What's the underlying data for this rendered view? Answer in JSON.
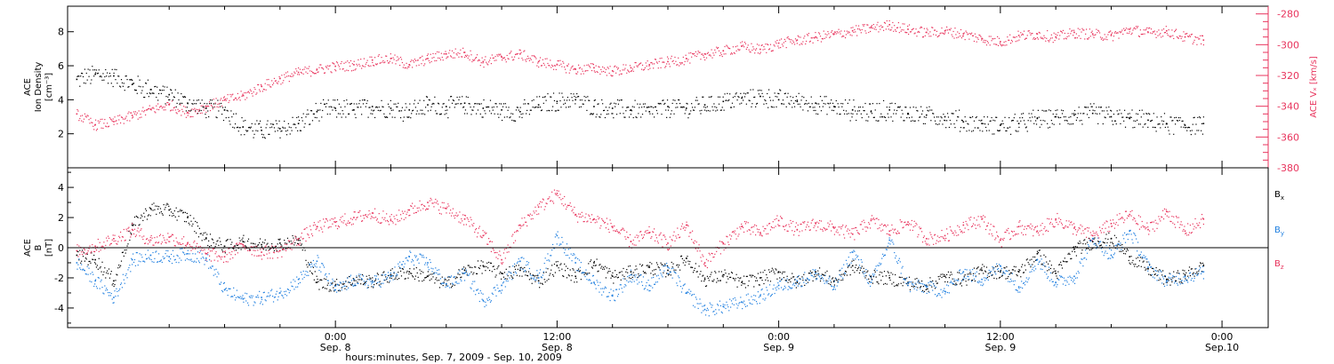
{
  "colors": {
    "black": "#000000",
    "pink": "#e8335c",
    "blue": "#1f7fe0",
    "axis": "#000000"
  },
  "x_axis": {
    "title": "hours:minutes, Sep.  7, 2009 - Sep. 10, 2009",
    "time_range_hours": [
      -14.5,
      50.5
    ],
    "ticks": [
      {
        "hours": 0,
        "label": "0:00",
        "date": "Sep. 8"
      },
      {
        "hours": 12,
        "label": "12:00",
        "date": "Sep. 8"
      },
      {
        "hours": 24,
        "label": "0:00",
        "date": "Sep. 9"
      },
      {
        "hours": 36,
        "label": "12:00",
        "date": "Sep. 9"
      },
      {
        "hours": 48,
        "label": "0:00",
        "date": "Sep.10"
      }
    ]
  },
  "chart_data": [
    {
      "type": "scatter",
      "panel": "top",
      "title": "",
      "left_axis": {
        "label_lines": [
          "ACE",
          "Ion Density",
          "[cm⁻³]"
        ],
        "ylim": [
          0,
          9.5
        ],
        "ticks": [
          2,
          4,
          6,
          8
        ]
      },
      "right_axis": {
        "label": "ACE Vₓ [km/s]",
        "ylim": [
          -380,
          -275
        ],
        "ticks": [
          -380,
          -360,
          -340,
          -320,
          -300,
          -280
        ]
      },
      "series": [
        {
          "name": "",
          "axis": "left",
          "color": "#000000",
          "x_hours": [
            -14,
            -13,
            -12,
            -11,
            -10,
            -9,
            -8,
            -7,
            -6,
            -5,
            -4,
            -3,
            -2,
            -1,
            0,
            1,
            2,
            3,
            4,
            5,
            6,
            7,
            8,
            9,
            10,
            11,
            12,
            13,
            14,
            15,
            16,
            17,
            18,
            19,
            20,
            21,
            22,
            23,
            24,
            25,
            26,
            27,
            28,
            29,
            30,
            31,
            32,
            33,
            34,
            35,
            36,
            37,
            38,
            39,
            40,
            41,
            42,
            43,
            44,
            45,
            46,
            47
          ],
          "values": [
            5.2,
            5.5,
            5.4,
            4.9,
            4.6,
            4.3,
            3.8,
            3.5,
            3.4,
            2.4,
            2.2,
            2.3,
            2.6,
            3.3,
            3.5,
            3.4,
            3.6,
            3.5,
            3.4,
            3.7,
            3.6,
            3.8,
            3.5,
            3.4,
            3.3,
            3.7,
            3.9,
            4.0,
            3.6,
            3.5,
            3.4,
            3.3,
            3.6,
            3.5,
            3.7,
            3.9,
            4.1,
            4.2,
            4.0,
            3.9,
            3.8,
            3.6,
            3.4,
            3.3,
            3.4,
            3.2,
            3.1,
            3.0,
            2.7,
            2.6,
            2.5,
            2.6,
            2.9,
            3.0,
            3.1,
            3.2,
            3.0,
            2.9,
            2.8,
            2.6,
            2.5,
            2.6
          ]
        },
        {
          "name": "",
          "axis": "right",
          "color": "#e8335c",
          "x_hours": [
            -14,
            -13,
            -12,
            -11,
            -10,
            -9,
            -8,
            -7,
            -6,
            -5,
            -4,
            -3,
            -2,
            -1,
            0,
            1,
            2,
            3,
            4,
            5,
            6,
            7,
            8,
            9,
            10,
            11,
            12,
            13,
            14,
            15,
            16,
            17,
            18,
            19,
            20,
            21,
            22,
            23,
            24,
            25,
            26,
            27,
            28,
            29,
            30,
            31,
            32,
            33,
            34,
            35,
            36,
            37,
            38,
            39,
            40,
            41,
            42,
            43,
            44,
            45,
            46,
            47
          ],
          "values": [
            -345,
            -352,
            -350,
            -346,
            -342,
            -339,
            -344,
            -340,
            -336,
            -333,
            -327,
            -322,
            -318,
            -316,
            -314,
            -313,
            -310,
            -309,
            -313,
            -309,
            -306,
            -305,
            -311,
            -308,
            -306,
            -311,
            -313,
            -316,
            -315,
            -317,
            -315,
            -313,
            -311,
            -309,
            -306,
            -304,
            -301,
            -303,
            -299,
            -297,
            -295,
            -293,
            -291,
            -289,
            -287,
            -290,
            -292,
            -291,
            -293,
            -296,
            -298,
            -294,
            -293,
            -295,
            -292,
            -293,
            -294,
            -290,
            -292,
            -291,
            -295,
            -297
          ]
        }
      ]
    },
    {
      "type": "scatter",
      "panel": "bottom",
      "title": "",
      "left_axis": {
        "label_lines": [
          "ACE",
          "B",
          "[nT]"
        ],
        "ylim": [
          -5.3,
          5.3
        ],
        "ticks": [
          -4,
          -2,
          0,
          2,
          4
        ]
      },
      "zero_line": true,
      "series": [
        {
          "name": "Bx",
          "label_main": "B",
          "label_sub": "x",
          "color": "#000000",
          "x_hours": [
            -14,
            -13,
            -12,
            -11,
            -10,
            -9,
            -8,
            -7,
            -6,
            -5,
            -4,
            -3,
            -2,
            -1,
            0,
            1,
            2,
            3,
            4,
            5,
            6,
            7,
            8,
            9,
            10,
            11,
            12,
            13,
            14,
            15,
            16,
            17,
            18,
            19,
            20,
            21,
            22,
            23,
            24,
            25,
            26,
            27,
            28,
            29,
            30,
            31,
            32,
            33,
            34,
            35,
            36,
            37,
            38,
            39,
            40,
            41,
            42,
            43,
            44,
            45,
            46,
            47
          ],
          "values": [
            -0.5,
            -0.8,
            -2.2,
            1.5,
            2.6,
            2.5,
            2.0,
            0.6,
            0.1,
            0.4,
            0.2,
            0.3,
            0.5,
            -2.3,
            -2.5,
            -2.1,
            -2.2,
            -1.8,
            -1.6,
            -1.9,
            -2.4,
            -1.5,
            -1.2,
            -1.7,
            -1.5,
            -2.2,
            -1.2,
            -1.9,
            -1.0,
            -1.9,
            -1.6,
            -1.3,
            -1.5,
            -0.7,
            -2.1,
            -1.8,
            -2.3,
            -2.0,
            -1.6,
            -2.3,
            -1.6,
            -2.2,
            -1.2,
            -1.9,
            -2.0,
            -2.3,
            -2.5,
            -1.9,
            -2.1,
            -1.5,
            -1.6,
            -1.6,
            -0.4,
            -1.7,
            -0.1,
            0.4,
            0.6,
            -0.6,
            -1.4,
            -2.1,
            -1.8,
            -1.2
          ]
        },
        {
          "name": "By",
          "label_main": "B",
          "label_sub": "y",
          "color": "#1f7fe0",
          "x_hours": [
            -14,
            -13,
            -12,
            -11,
            -10,
            -9,
            -8,
            -7,
            -6,
            -5,
            -4,
            -3,
            -2,
            -1,
            0,
            1,
            2,
            3,
            4,
            5,
            6,
            7,
            8,
            9,
            10,
            11,
            12,
            13,
            14,
            15,
            16,
            17,
            18,
            19,
            20,
            21,
            22,
            23,
            24,
            25,
            26,
            27,
            28,
            29,
            30,
            31,
            32,
            33,
            34,
            35,
            36,
            37,
            38,
            39,
            40,
            41,
            42,
            43,
            44,
            45,
            46,
            47
          ],
          "values": [
            -1.0,
            -2.2,
            -3.3,
            -0.8,
            -0.5,
            -0.6,
            -0.4,
            -0.7,
            -2.8,
            -3.4,
            -3.3,
            -3.0,
            -2.1,
            -0.9,
            -2.8,
            -2.1,
            -2.3,
            -1.9,
            -0.6,
            -1.0,
            -2.4,
            -1.7,
            -3.5,
            -2.5,
            -0.9,
            -2.0,
            0.8,
            -1.0,
            -2.3,
            -3.2,
            -1.8,
            -2.5,
            -1.3,
            -3.0,
            -4.1,
            -3.9,
            -3.6,
            -3.2,
            -2.5,
            -2.2,
            -1.7,
            -2.6,
            -0.3,
            -2.3,
            0.5,
            -2.5,
            -2.6,
            -2.9,
            -1.6,
            -2.1,
            -1.2,
            -2.6,
            -0.8,
            -2.3,
            -1.9,
            0.6,
            -0.5,
            1.1,
            -1.3,
            -2.2,
            -1.9,
            -1.6
          ]
        },
        {
          "name": "Bz",
          "label_main": "B",
          "label_sub": "z",
          "color": "#e8335c",
          "x_hours": [
            -14,
            -13,
            -12,
            -11,
            -10,
            -9,
            -8,
            -7,
            -6,
            -5,
            -4,
            -3,
            -2,
            -1,
            0,
            1,
            2,
            3,
            4,
            5,
            6,
            7,
            8,
            9,
            10,
            11,
            12,
            13,
            14,
            15,
            16,
            17,
            18,
            19,
            20,
            21,
            22,
            23,
            24,
            25,
            26,
            27,
            28,
            29,
            30,
            31,
            32,
            33,
            34,
            35,
            36,
            37,
            38,
            39,
            40,
            41,
            42,
            43,
            44,
            45,
            46,
            47
          ],
          "values": [
            -0.2,
            0.1,
            0.6,
            1.2,
            0.5,
            0.7,
            0.3,
            -0.4,
            -0.6,
            0.2,
            -0.3,
            -0.2,
            0.6,
            1.4,
            1.7,
            2.0,
            2.3,
            1.8,
            2.5,
            3.0,
            2.6,
            1.9,
            0.8,
            -0.8,
            1.5,
            2.7,
            3.6,
            2.2,
            1.9,
            1.4,
            0.4,
            1.0,
            0.3,
            1.5,
            -1.0,
            0.3,
            1.4,
            1.0,
            1.8,
            1.2,
            1.6,
            1.3,
            0.9,
            1.8,
            1.1,
            1.7,
            0.6,
            0.8,
            1.5,
            1.9,
            0.5,
            1.4,
            1.1,
            1.9,
            1.3,
            0.8,
            1.6,
            2.2,
            1.2,
            2.4,
            1.1,
            1.9
          ]
        }
      ]
    }
  ]
}
